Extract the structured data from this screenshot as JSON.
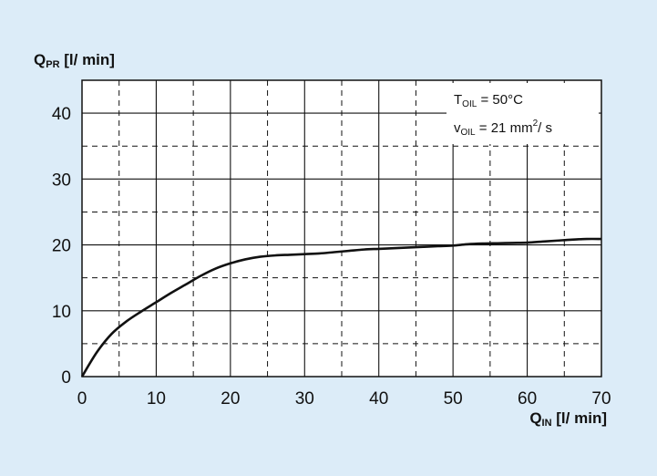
{
  "chart_data": {
    "type": "line",
    "title": "",
    "ylabel": {
      "main": "Q",
      "sub": "PR",
      "rest": " [l/ min]"
    },
    "xlabel": {
      "main": "Q",
      "sub": "IN",
      "rest": " [l/ min]"
    },
    "xlim": [
      0,
      70
    ],
    "ylim": [
      0,
      45
    ],
    "x_ticks": [
      0,
      10,
      20,
      30,
      40,
      50,
      60,
      70
    ],
    "y_ticks": [
      0,
      10,
      20,
      30,
      40
    ],
    "minor_x_ticks": [
      5,
      15,
      25,
      35,
      45,
      55,
      65
    ],
    "minor_y_ticks": [
      5,
      15,
      25,
      35
    ],
    "grid": true,
    "series": [
      {
        "x": [
          0,
          2,
          4,
          6,
          8,
          10,
          12,
          14,
          16,
          18,
          20,
          22,
          24,
          26,
          28,
          30,
          32,
          34,
          36,
          38,
          40,
          42,
          44,
          46,
          48,
          50,
          52,
          54,
          56,
          58,
          60,
          62,
          64,
          66,
          68,
          70
        ],
        "values": [
          0,
          3.7,
          6.5,
          8.4,
          9.9,
          11.3,
          12.7,
          14.0,
          15.3,
          16.4,
          17.2,
          17.8,
          18.2,
          18.4,
          18.5,
          18.6,
          18.7,
          18.9,
          19.1,
          19.3,
          19.4,
          19.5,
          19.6,
          19.7,
          19.8,
          19.9,
          20.1,
          20.2,
          20.25,
          20.3,
          20.35,
          20.5,
          20.65,
          20.8,
          20.9,
          20.9
        ]
      }
    ],
    "annotations": [
      {
        "main": "T",
        "sub": "OIL",
        "rest": " = 50°C"
      },
      {
        "main": "v",
        "sub": "OIL",
        "rest": " = 21 mm",
        "sup": "2",
        "after": "/ s"
      }
    ],
    "colors": {
      "background": "#dcecf8",
      "plot_area": "#ffffff",
      "line": "#111111",
      "grid": "#111111"
    }
  }
}
